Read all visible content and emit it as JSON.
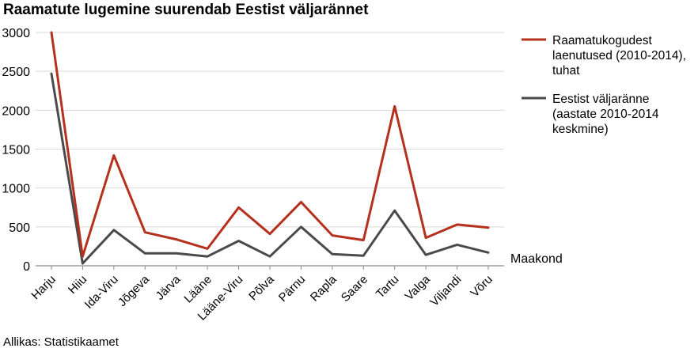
{
  "title": "Raamatute lugemine suurendab Eestist väljarännet",
  "source": "Allikas: Statistikaamet",
  "chart_data": {
    "type": "line",
    "title": "Raamatute lugemine suurendab Eestist väljarännet",
    "xlabel": "Maakond",
    "ylabel": "",
    "categories": [
      "Harju",
      "Hiiu",
      "Ida-Viru",
      "Jõgeva",
      "Järva",
      "Lääne",
      "Lääne-Viru",
      "Põlva",
      "Pärnu",
      "Rapla",
      "Saare",
      "Tartu",
      "Valga",
      "Viljandi",
      "Võru"
    ],
    "ylim": [
      0,
      3000
    ],
    "yticks": [
      "0",
      "500",
      "1000",
      "1500",
      "2000",
      "2500",
      "3000"
    ],
    "ytick_values": [
      0,
      500,
      1000,
      1500,
      2000,
      2500,
      3000
    ],
    "grid": "horizontal",
    "legend_position": "right",
    "series": [
      {
        "name": "Raamatukogudest laenutused (2010-2014), tuhat",
        "name_lines": [
          "Raamatukogudest",
          "laenutused (2010-2014),",
          "tuhat"
        ],
        "color": "#b5311e",
        "values": [
          3000,
          120,
          1420,
          430,
          340,
          220,
          750,
          410,
          820,
          390,
          330,
          2050,
          360,
          530,
          490
        ]
      },
      {
        "name": "Eestist väljaränne (aastate 2010-2014 keskmine)",
        "name_lines": [
          "Eestist väljaränne",
          "(aastate 2010-2014",
          "keskmine)"
        ],
        "color": "#4a4a4a",
        "values": [
          2470,
          30,
          460,
          160,
          160,
          120,
          320,
          120,
          500,
          150,
          130,
          710,
          140,
          270,
          170
        ]
      }
    ]
  }
}
